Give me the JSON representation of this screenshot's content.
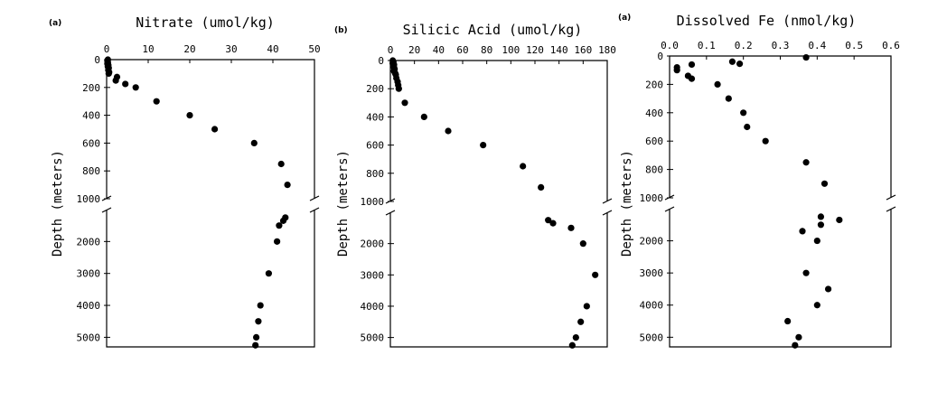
{
  "chart_data": [
    {
      "type": "scatter",
      "panel_label": "(a)",
      "title": "Nitrate (umol/kg)",
      "ylabel": "Depth (meters)",
      "xlim": [
        0,
        50
      ],
      "x_ticks": [
        "0",
        "10",
        "20",
        "30",
        "40",
        "50"
      ],
      "y_upper_ticks": [
        "0",
        "200",
        "400",
        "600",
        "800",
        "1000"
      ],
      "y_lower_ticks": [
        "2000",
        "3000",
        "4000",
        "5000"
      ],
      "y_upper_range": [
        0,
        1000
      ],
      "y_lower_range": [
        1000,
        5300
      ],
      "axis_break": "between 1000 and deep section",
      "points": [
        {
          "x": 0.3,
          "y": 0
        },
        {
          "x": 0.2,
          "y": 10
        },
        {
          "x": 0.3,
          "y": 20
        },
        {
          "x": 0.2,
          "y": 30
        },
        {
          "x": 0.4,
          "y": 40
        },
        {
          "x": 0.3,
          "y": 50
        },
        {
          "x": 0.5,
          "y": 60
        },
        {
          "x": 0.4,
          "y": 75
        },
        {
          "x": 0.6,
          "y": 90
        },
        {
          "x": 0.5,
          "y": 100
        },
        {
          "x": 2.5,
          "y": 125
        },
        {
          "x": 2.2,
          "y": 150
        },
        {
          "x": 4.5,
          "y": 175
        },
        {
          "x": 7,
          "y": 200
        },
        {
          "x": 12,
          "y": 300
        },
        {
          "x": 20,
          "y": 400
        },
        {
          "x": 26,
          "y": 500
        },
        {
          "x": 35.5,
          "y": 600
        },
        {
          "x": 42,
          "y": 750
        },
        {
          "x": 43.5,
          "y": 900
        },
        {
          "x": 43,
          "y": 1250
        },
        {
          "x": 42.5,
          "y": 1350
        },
        {
          "x": 41.5,
          "y": 1500
        },
        {
          "x": 41,
          "y": 2000
        },
        {
          "x": 39,
          "y": 3000
        },
        {
          "x": 37,
          "y": 4000
        },
        {
          "x": 36.5,
          "y": 4500
        },
        {
          "x": 36,
          "y": 5000
        },
        {
          "x": 35.8,
          "y": 5250
        }
      ]
    },
    {
      "type": "scatter",
      "panel_label": "(b)",
      "title": "Silicic Acid (umol/kg)",
      "ylabel": "Depth (meters)",
      "xlim": [
        0,
        180
      ],
      "x_ticks": [
        "0",
        "20",
        "40",
        "60",
        "80",
        "100",
        "120",
        "140",
        "160",
        "180"
      ],
      "y_upper_ticks": [
        "0",
        "200",
        "400",
        "600",
        "800",
        "1000"
      ],
      "y_lower_ticks": [
        "2000",
        "3000",
        "4000",
        "5000"
      ],
      "y_upper_range": [
        0,
        1000
      ],
      "y_lower_range": [
        1000,
        5300
      ],
      "axis_break": "between 1000 and deep section",
      "points": [
        {
          "x": 2,
          "y": 0
        },
        {
          "x": 2.5,
          "y": 10
        },
        {
          "x": 2,
          "y": 20
        },
        {
          "x": 3,
          "y": 30
        },
        {
          "x": 2.5,
          "y": 40
        },
        {
          "x": 3,
          "y": 50
        },
        {
          "x": 3.5,
          "y": 60
        },
        {
          "x": 3,
          "y": 75
        },
        {
          "x": 4,
          "y": 90
        },
        {
          "x": 4.5,
          "y": 100
        },
        {
          "x": 5,
          "y": 125
        },
        {
          "x": 6,
          "y": 150
        },
        {
          "x": 6.5,
          "y": 175
        },
        {
          "x": 7,
          "y": 200
        },
        {
          "x": 12,
          "y": 300
        },
        {
          "x": 28,
          "y": 400
        },
        {
          "x": 48,
          "y": 500
        },
        {
          "x": 77,
          "y": 600
        },
        {
          "x": 110,
          "y": 750
        },
        {
          "x": 125,
          "y": 900
        },
        {
          "x": 131,
          "y": 1250
        },
        {
          "x": 135,
          "y": 1350
        },
        {
          "x": 150,
          "y": 1500
        },
        {
          "x": 160,
          "y": 2000
        },
        {
          "x": 170,
          "y": 3000
        },
        {
          "x": 163,
          "y": 4000
        },
        {
          "x": 158,
          "y": 4500
        },
        {
          "x": 154,
          "y": 5000
        },
        {
          "x": 151,
          "y": 5250
        }
      ]
    },
    {
      "type": "scatter",
      "panel_label": "(a)",
      "title": "Dissolved Fe (nmol/kg)",
      "ylabel": "Depth (meters)",
      "xlim": [
        0,
        0.6
      ],
      "x_ticks": [
        "0.0",
        "0.1",
        "0.2",
        "0.3",
        "0.4",
        "0.5",
        "0.6"
      ],
      "y_upper_ticks": [
        "0",
        "200",
        "400",
        "600",
        "800",
        "1000"
      ],
      "y_lower_ticks": [
        "2000",
        "3000",
        "4000",
        "5000"
      ],
      "y_upper_range": [
        0,
        1000
      ],
      "y_lower_range": [
        1000,
        5300
      ],
      "axis_break": "between 1000 and deep section",
      "points": [
        {
          "x": 0.37,
          "y": 10
        },
        {
          "x": 0.17,
          "y": 40
        },
        {
          "x": 0.19,
          "y": 55
        },
        {
          "x": 0.06,
          "y": 60
        },
        {
          "x": 0.02,
          "y": 80
        },
        {
          "x": 0.02,
          "y": 100
        },
        {
          "x": 0.05,
          "y": 140
        },
        {
          "x": 0.06,
          "y": 160
        },
        {
          "x": 0.13,
          "y": 200
        },
        {
          "x": 0.16,
          "y": 300
        },
        {
          "x": 0.2,
          "y": 400
        },
        {
          "x": 0.21,
          "y": 500
        },
        {
          "x": 0.26,
          "y": 600
        },
        {
          "x": 0.37,
          "y": 750
        },
        {
          "x": 0.42,
          "y": 900
        },
        {
          "x": 0.46,
          "y": 1350
        },
        {
          "x": 0.41,
          "y": 1250
        },
        {
          "x": 0.41,
          "y": 1500
        },
        {
          "x": 0.36,
          "y": 1700
        },
        {
          "x": 0.4,
          "y": 2000
        },
        {
          "x": 0.37,
          "y": 3000
        },
        {
          "x": 0.43,
          "y": 3500
        },
        {
          "x": 0.4,
          "y": 4000
        },
        {
          "x": 0.32,
          "y": 4500
        },
        {
          "x": 0.35,
          "y": 5000
        },
        {
          "x": 0.34,
          "y": 5250
        }
      ]
    }
  ]
}
